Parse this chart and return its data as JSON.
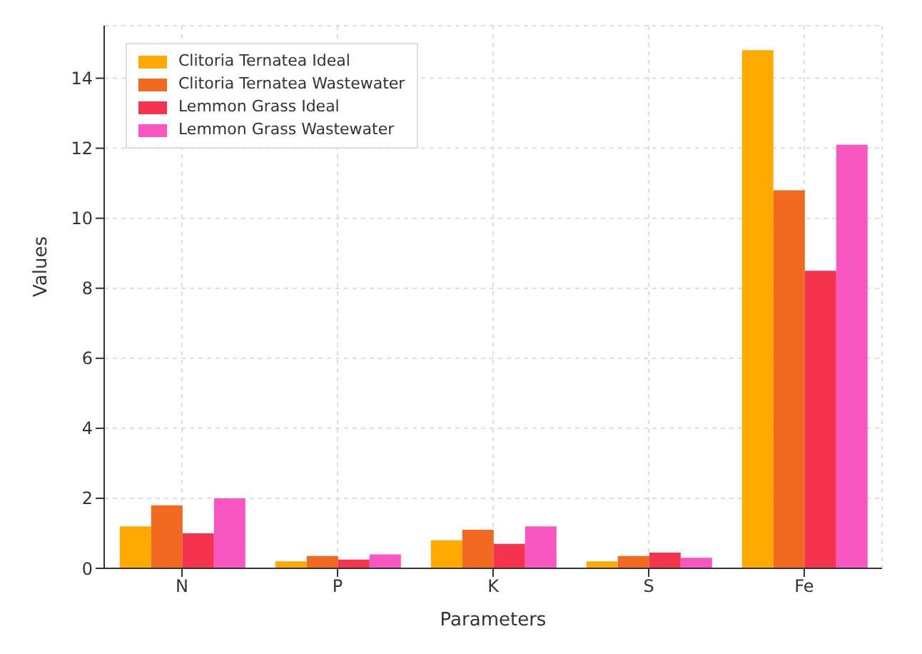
{
  "chart_data": {
    "type": "bar",
    "xlabel": "Parameters",
    "ylabel": "Values",
    "categories": [
      "N",
      "P",
      "K",
      "S",
      "Fe"
    ],
    "series": [
      {
        "name": "Clitoria Ternatea Ideal",
        "color": "#ffaa00",
        "values": [
          1.2,
          0.2,
          0.8,
          0.2,
          14.8
        ]
      },
      {
        "name": "Clitoria Ternatea Wastewater",
        "color": "#f26a21",
        "values": [
          1.8,
          0.35,
          1.1,
          0.35,
          10.8
        ]
      },
      {
        "name": "Lemmon Grass Ideal",
        "color": "#f5334f",
        "values": [
          1.0,
          0.25,
          0.7,
          0.45,
          8.5
        ]
      },
      {
        "name": "Lemmon Grass Wastewater",
        "color": "#f856c0",
        "values": [
          2.0,
          0.4,
          1.2,
          0.3,
          12.1
        ]
      }
    ],
    "ylim": [
      0,
      15.5
    ],
    "yticks": [
      0,
      2,
      4,
      6,
      8,
      10,
      12,
      14
    ],
    "grid": true,
    "legend": "top left"
  }
}
